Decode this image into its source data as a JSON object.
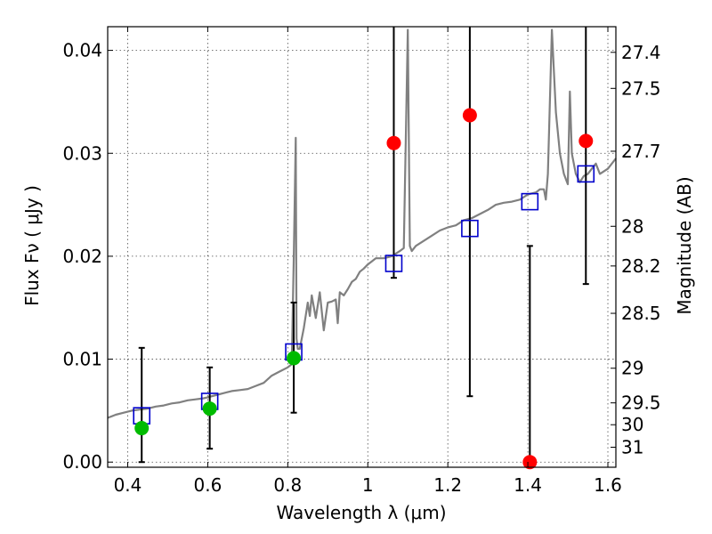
{
  "chart_data": {
    "type": "scatter",
    "xlabel": "Wavelength  λ (μm)",
    "ylabel": "Flux  Fν  ( μJy )",
    "y2label": "Magnitude (AB)",
    "xlim": [
      0.35,
      1.62
    ],
    "ylim": [
      -0.0005,
      0.0423
    ],
    "x_ticks": [
      0.4,
      0.6,
      0.8,
      1.0,
      1.2,
      1.4,
      1.6
    ],
    "x_tick_labels": [
      "0.4",
      "0.6",
      "0.8",
      "1",
      "1.2",
      "1.4",
      "1.6"
    ],
    "y_ticks": [
      0.0,
      0.01,
      0.02,
      0.03,
      0.04
    ],
    "y_tick_labels": [
      "0.00",
      "0.01",
      "0.02",
      "0.03",
      "0.04"
    ],
    "y2_ticks": [
      27.4,
      27.5,
      27.7,
      28,
      28.2,
      28.5,
      29,
      29.5,
      30,
      31
    ],
    "y2_tick_labels": [
      "27.4",
      "27.5",
      "27.7",
      "28",
      "28.2",
      "28.5",
      "29",
      "29.5",
      "30",
      "31"
    ],
    "grid": true,
    "colors": {
      "model": "#808080",
      "detection": "#00bb00",
      "upper_limit": "#ff0000",
      "model_photometry": "#0000cc",
      "error_bar": "#000000"
    },
    "model_spectrum": {
      "x": [
        0.35,
        0.37,
        0.39,
        0.41,
        0.43,
        0.45,
        0.47,
        0.49,
        0.51,
        0.53,
        0.55,
        0.57,
        0.59,
        0.6,
        0.62,
        0.64,
        0.66,
        0.68,
        0.7,
        0.72,
        0.74,
        0.76,
        0.78,
        0.8,
        0.81,
        0.815,
        0.82,
        0.822,
        0.825,
        0.83,
        0.84,
        0.85,
        0.855,
        0.86,
        0.87,
        0.88,
        0.89,
        0.9,
        0.91,
        0.92,
        0.925,
        0.93,
        0.94,
        0.95,
        0.96,
        0.97,
        0.98,
        0.99,
        1.0,
        1.02,
        1.04,
        1.06,
        1.08,
        1.09,
        1.1,
        1.105,
        1.11,
        1.12,
        1.14,
        1.16,
        1.18,
        1.2,
        1.22,
        1.24,
        1.26,
        1.28,
        1.3,
        1.32,
        1.34,
        1.36,
        1.38,
        1.4,
        1.42,
        1.43,
        1.44,
        1.445,
        1.45,
        1.46,
        1.47,
        1.48,
        1.49,
        1.5,
        1.505,
        1.51,
        1.52,
        1.53,
        1.54,
        1.55,
        1.56,
        1.57,
        1.58,
        1.6,
        1.62
      ],
      "y": [
        0.0043,
        0.0046,
        0.0048,
        0.005,
        0.0051,
        0.0052,
        0.0054,
        0.0055,
        0.0057,
        0.0058,
        0.006,
        0.0061,
        0.0062,
        0.0063,
        0.0065,
        0.0067,
        0.0069,
        0.007,
        0.0071,
        0.0074,
        0.0077,
        0.0084,
        0.0088,
        0.0092,
        0.0095,
        0.02,
        0.0315,
        0.012,
        0.011,
        0.011,
        0.013,
        0.0155,
        0.0142,
        0.0162,
        0.014,
        0.0165,
        0.0128,
        0.0155,
        0.0156,
        0.0158,
        0.0135,
        0.0165,
        0.0162,
        0.0168,
        0.0175,
        0.0178,
        0.0185,
        0.0188,
        0.0192,
        0.0198,
        0.0198,
        0.02,
        0.0205,
        0.0208,
        0.042,
        0.021,
        0.0205,
        0.021,
        0.0215,
        0.022,
        0.0225,
        0.0228,
        0.023,
        0.0235,
        0.0237,
        0.0241,
        0.0245,
        0.025,
        0.0252,
        0.0253,
        0.0255,
        0.026,
        0.0262,
        0.0265,
        0.0265,
        0.0255,
        0.028,
        0.042,
        0.034,
        0.03,
        0.028,
        0.027,
        0.036,
        0.03,
        0.028,
        0.0272,
        0.0278,
        0.028,
        0.0285,
        0.029,
        0.028,
        0.0285,
        0.0295
      ]
    },
    "observed_detections": {
      "x": [
        0.435,
        0.605,
        0.815
      ],
      "y": [
        0.0033,
        0.0052,
        0.0101
      ],
      "err_low": [
        0.0033,
        0.0039,
        0.0053
      ],
      "err_high": [
        0.0078,
        0.004,
        0.0054
      ]
    },
    "observed_upper_limits": {
      "x": [
        1.065,
        1.255,
        1.405,
        1.545
      ],
      "y": [
        0.031,
        0.0337,
        0.0,
        0.0312
      ],
      "err_low": [
        0.0131,
        0.0273,
        0.0,
        0.0139
      ],
      "err_high": [
        0.0115,
        0.0088,
        0.021,
        0.0112
      ]
    },
    "model_photometry": {
      "x": [
        0.435,
        0.605,
        0.815,
        1.065,
        1.255,
        1.405,
        1.545
      ],
      "y": [
        0.0045,
        0.0059,
        0.0107,
        0.0193,
        0.0227,
        0.0253,
        0.028
      ]
    }
  }
}
